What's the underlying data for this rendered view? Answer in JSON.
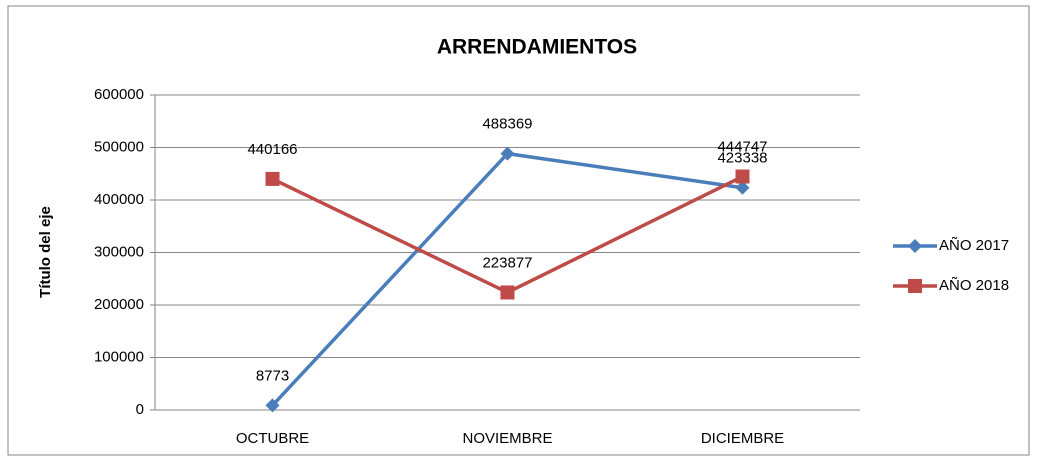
{
  "chart_data": {
    "type": "line",
    "title": "ARRENDAMIENTOS",
    "y_label": "Título del eje",
    "categories": [
      "OCTUBRE",
      "NOVIEMBRE",
      "DICIEMBRE"
    ],
    "series": [
      {
        "name": "AÑO 2017",
        "color": "#4a7ebb",
        "marker": "diamond",
        "values": [
          8773,
          488369,
          423338
        ]
      },
      {
        "name": "AÑO 2018",
        "color": "#be4b48",
        "marker": "square",
        "values": [
          440166,
          223877,
          444747
        ]
      }
    ],
    "ylim": [
      0,
      600000
    ],
    "yticks": [
      0,
      100000,
      200000,
      300000,
      400000,
      500000,
      600000
    ],
    "grid": true,
    "legend": "right"
  }
}
